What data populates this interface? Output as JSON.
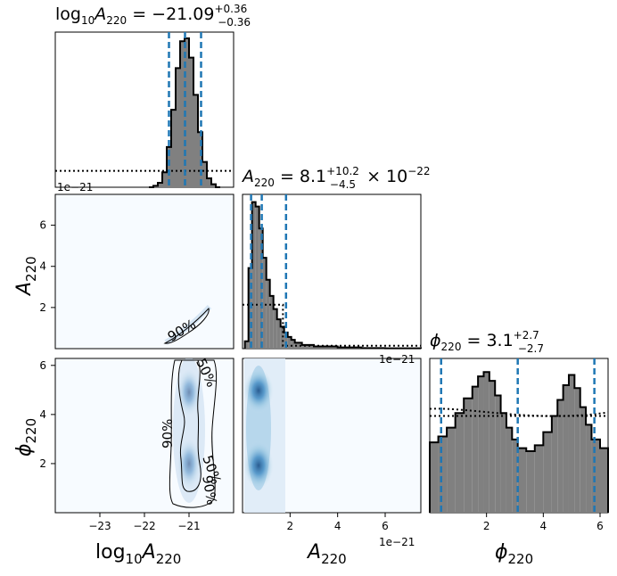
{
  "chart_data": {
    "type": "corner",
    "parameters": [
      {
        "id": "log10A",
        "axis_label_main": "log",
        "axis_label_sub": "10",
        "axis_label_var": "A",
        "axis_label_var_sub": "220",
        "title": {
          "prefix_main": "log",
          "prefix_sub": "10",
          "var": "A",
          "var_sub": "220",
          "median": " = −21.09",
          "plus": "+0.36",
          "minus": "−0.36",
          "suffix": ""
        },
        "range": [
          -24,
          -20
        ],
        "ticks": [
          -23,
          -22,
          -21
        ],
        "tick_labels": [
          "−23",
          "−22",
          "−21"
        ],
        "quantiles": [
          -21.45,
          -21.09,
          -20.73
        ]
      },
      {
        "id": "A220",
        "axis_label_var": "A",
        "axis_label_var_sub": "220",
        "title": {
          "var": "A",
          "var_sub": "220",
          "median": " = 8.1",
          "plus": "+10.2",
          "minus": "−4.5",
          "suffix": " × 10",
          "suffix_exp": "−22"
        },
        "range": [
          0,
          7.5
        ],
        "ticks": [
          2,
          4,
          6
        ],
        "tick_labels": [
          "2",
          "4",
          "6"
        ],
        "offset_text": "1e−21",
        "quantiles": [
          0.36,
          0.81,
          1.83
        ]
      },
      {
        "id": "phi220",
        "axis_label_var": "ϕ",
        "axis_label_var_sub": "220",
        "title": {
          "var": "ϕ",
          "var_sub": "220",
          "median": " = 3.1",
          "plus": "+2.7",
          "minus": "−2.7",
          "suffix": ""
        },
        "range": [
          0,
          6.283
        ],
        "ticks": [
          2,
          4,
          6
        ],
        "tick_labels": [
          "2",
          "4",
          "6"
        ],
        "quantiles": [
          0.4,
          3.1,
          5.8
        ]
      }
    ],
    "left_axis": {
      "A220_ticks": [
        2,
        4,
        6
      ],
      "A220_tick_labels": [
        "2",
        "4",
        "6"
      ],
      "phi220_ticks": [
        2,
        4,
        6
      ],
      "phi220_tick_labels": [
        "2",
        "4",
        "6"
      ],
      "top_offset_text": "1e−21"
    },
    "hist_log10A": {
      "bin_edges": [
        -21.9,
        -21.8,
        -21.7,
        -21.6,
        -21.5,
        -21.4,
        -21.3,
        -21.2,
        -21.1,
        -21.0,
        -20.9,
        -20.8,
        -20.7,
        -20.6,
        -20.5,
        -20.4,
        -20.3
      ],
      "posterior": [
        0.0,
        0.01,
        0.03,
        0.1,
        0.27,
        0.52,
        0.8,
        0.98,
        1.0,
        0.87,
        0.62,
        0.37,
        0.17,
        0.06,
        0.02,
        0.0
      ],
      "prior_level": 0.11
    },
    "hist_A220": {
      "bin_edges": [
        0.1,
        0.25,
        0.4,
        0.55,
        0.7,
        0.85,
        1.0,
        1.15,
        1.3,
        1.45,
        1.6,
        1.75,
        1.9,
        2.05,
        2.2,
        2.5,
        3.0,
        4.0,
        5.0,
        6.0,
        7.5
      ],
      "posterior": [
        0.05,
        0.55,
        1.0,
        0.97,
        0.82,
        0.62,
        0.47,
        0.36,
        0.27,
        0.2,
        0.15,
        0.11,
        0.08,
        0.06,
        0.04,
        0.025,
        0.015,
        0.008,
        0.004,
        0.002
      ],
      "prior_level": 0.3,
      "prior_cutoff": 1.7
    },
    "hist_phi220": {
      "bin_edges": [
        0.0,
        0.3,
        0.6,
        0.9,
        1.2,
        1.5,
        1.7,
        1.9,
        2.1,
        2.3,
        2.5,
        2.7,
        2.9,
        3.1,
        3.4,
        3.7,
        4.0,
        4.3,
        4.5,
        4.7,
        4.9,
        5.1,
        5.3,
        5.5,
        5.7,
        6.0,
        6.283
      ],
      "posterior": [
        0.48,
        0.52,
        0.58,
        0.68,
        0.78,
        0.86,
        0.93,
        0.96,
        0.9,
        0.8,
        0.68,
        0.58,
        0.5,
        0.44,
        0.42,
        0.46,
        0.55,
        0.66,
        0.77,
        0.87,
        0.94,
        0.85,
        0.72,
        0.6,
        0.5,
        0.44
      ],
      "prior_level": 0.66
    },
    "contour_labels": {
      "inner": "50%",
      "outer": "90%"
    }
  }
}
